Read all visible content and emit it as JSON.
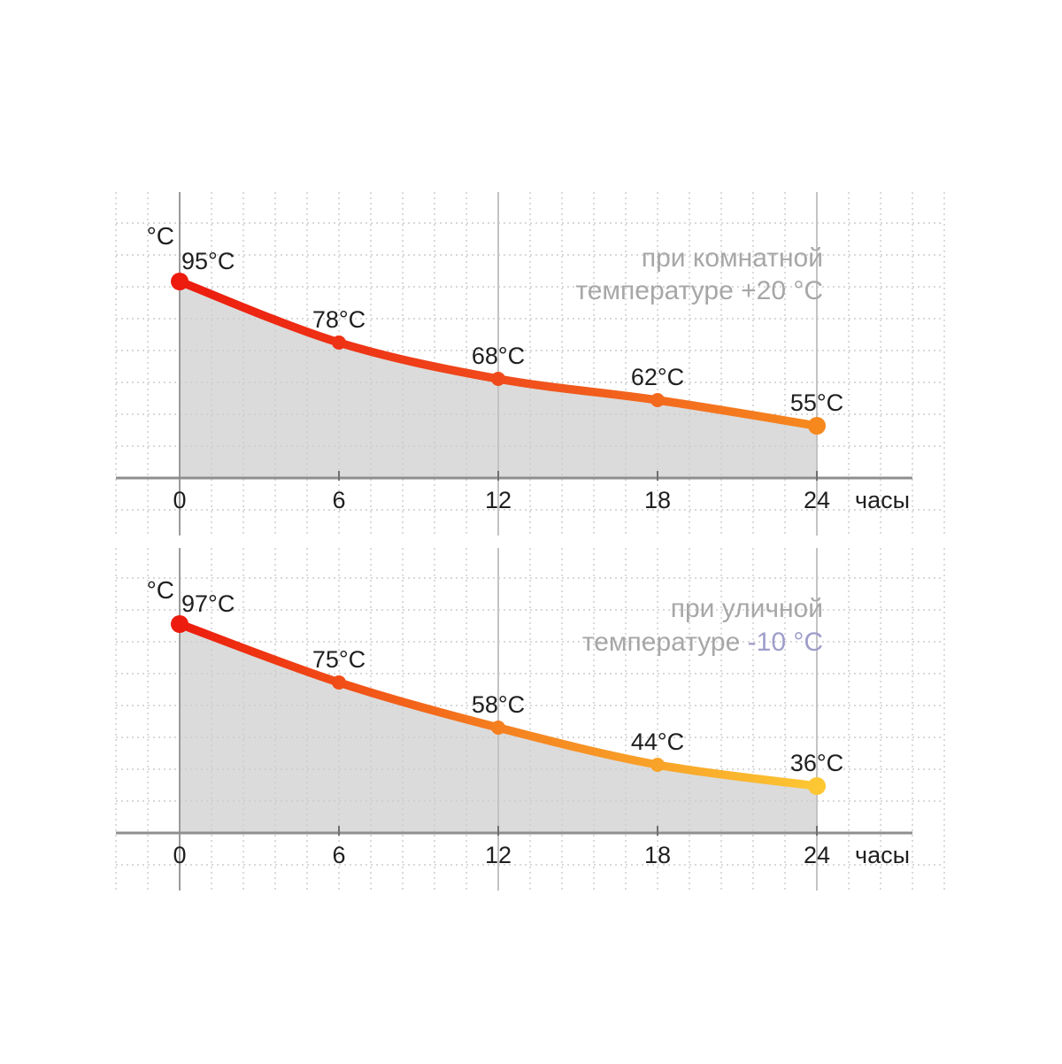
{
  "page": {
    "background": "#ffffff"
  },
  "colors": {
    "label_text": "#1f1f1f",
    "annotation_gray": "#a7a7a7",
    "annotation_highlight_purple": "#9f9ecb",
    "area_fill_gray": "#dbdbdb",
    "axis_dark_gray": "#8f8f8f",
    "grid_light_gray": "#cbcbcb",
    "solid_gridline_gray": "#c3c3c3"
  },
  "chart_data": [
    {
      "type": "area",
      "name": "cooling-at-room-temperature",
      "x": [
        0,
        6,
        12,
        18,
        24
      ],
      "x_tick_labels": [
        "0",
        "6",
        "12",
        "18",
        "24"
      ],
      "values": [
        95,
        78,
        68,
        62,
        55
      ],
      "point_labels": [
        "95°C",
        "78°C",
        "68°C",
        "62°C",
        "55°C"
      ],
      "ylabel": "°C",
      "xlabel": "часы",
      "xlim": [
        0,
        24
      ],
      "grid": "dotted",
      "annotation_lines": [
        [
          {
            "text": "при комнатной"
          }
        ],
        [
          {
            "text": "температуре +20 °C"
          }
        ]
      ],
      "annotation_position": "top-right",
      "line_gradient": [
        "#ec1b0e",
        "#f04a1c",
        "#f6891e"
      ],
      "area_fill": "#dbdbdb"
    },
    {
      "type": "area",
      "name": "cooling-at-outdoor-temperature",
      "x": [
        0,
        6,
        12,
        18,
        24
      ],
      "x_tick_labels": [
        "0",
        "6",
        "12",
        "18",
        "24"
      ],
      "values": [
        97,
        75,
        58,
        44,
        36
      ],
      "point_labels": [
        "97°C",
        "75°C",
        "58°C",
        "44°C",
        "36°C"
      ],
      "ylabel": "°C",
      "xlabel": "часы",
      "xlim": [
        0,
        24
      ],
      "grid": "dotted",
      "annotation_lines": [
        [
          {
            "text": "при уличной"
          }
        ],
        [
          {
            "text": "температуре "
          },
          {
            "text": "-10 °C",
            "color": "#9f9ecb"
          }
        ]
      ],
      "annotation_position": "top-right",
      "line_gradient": [
        "#ec1b0e",
        "#f57f1f",
        "#fcc733"
      ],
      "area_fill": "#dbdbdb"
    }
  ]
}
